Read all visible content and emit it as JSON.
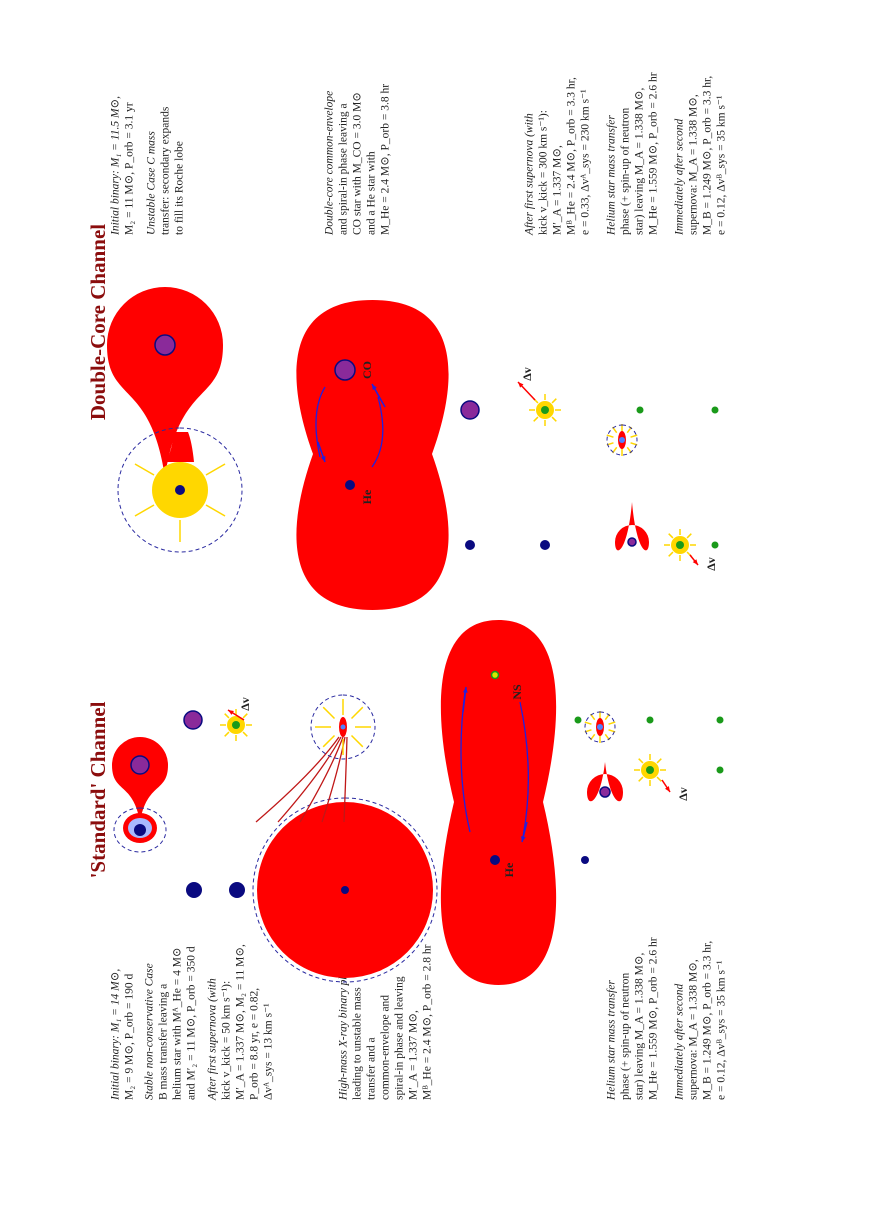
{
  "titles": {
    "standard": "'Standard' Channel",
    "double_core": "Double-Core Channel"
  },
  "standard": {
    "blocks": [
      {
        "lines": [
          "Initial binary: M₁ = 14 M⊙,",
          "M₂ = 9 M⊙, P_orb = 190 d"
        ]
      },
      {
        "lines": [
          "Stable non-conservative Case",
          "B mass transfer leaving a",
          "helium star with Mᴬ_He = 4 M⊙",
          "and M′₂ = 11 M⊙, P_orb = 350 d"
        ]
      },
      {
        "lines": [
          "After first supernova (with",
          "kick v_kick = 50 km s⁻¹):",
          "M′_A = 1.337 M⊙, M₂ = 11 M⊙,",
          "P_orb = 8.8 yr, e = 0.82,",
          "Δvᴬ_sys = 13 km s⁻¹"
        ]
      },
      {
        "lines": [
          "High-mass X-ray binary phase",
          "leading to unstable mass",
          "transfer and a",
          "common-envelope and",
          "spiral-in phase and leaving",
          "M′_A = 1.337 M⊙,",
          "Mᴮ_He = 2.4 M⊙, P_orb = 2.8 hr"
        ]
      },
      {
        "lines": [
          "Helium star mass transfer",
          "phase (+ spin-up of neutron",
          "star) leaving M_A = 1.338 M⊙,",
          "M_He = 1.559 M⊙, P_orb = 2.6 hr"
        ]
      },
      {
        "lines": [
          "Immediately after second",
          "supernova: M_A = 1.338 M⊙,",
          "M_B = 1.249 M⊙, P_orb = 3.3 hr,",
          "e = 0.12, Δvᴮ_sys = 35 km s⁻¹"
        ]
      }
    ],
    "labels": {
      "he": "He",
      "ns": "NS",
      "dv": "Δv"
    }
  },
  "double_core": {
    "blocks": [
      {
        "lines": [
          "Initial binary: M₁ = 11.5 M⊙,",
          "M₂ = 11 M⊙, P_orb = 3.1 yr"
        ]
      },
      {
        "lines": [
          "Unstable Case C mass",
          "transfer: secondary expands",
          "to fill its Roche lobe"
        ]
      },
      {
        "lines": [
          "Double-core common-envelope",
          "and spiral-in phase leaving a",
          "CO star with M_CO = 3.0 M⊙",
          "and a He star with",
          "M_He = 2.4 M⊙, P_orb = 3.8 hr"
        ]
      },
      {
        "lines": [
          "After first supernova (with",
          "kick v_kick = 300 km s⁻¹):",
          "M′_A = 1.337 M⊙,",
          "Mᴮ_He = 2.4 M⊙, P_orb = 3.3 hr,",
          "e = 0.33, Δvᴬ_sys = 230 km s⁻¹"
        ]
      },
      {
        "lines": [
          "Helium star mass transfer",
          "phase (+ spin-up of neutron",
          "star) leaving M_A = 1.338 M⊙,",
          "M_He = 1.559 M⊙, P_orb = 2.6 hr"
        ]
      },
      {
        "lines": [
          "Immediately after second",
          "supernova: M_A = 1.338 M⊙,",
          "M_B = 1.249 M⊙, P_orb = 3.3 hr,",
          "e = 0.12, Δvᴮ_sys = 35 km s⁻¹"
        ]
      }
    ],
    "labels": {
      "he": "He",
      "co": "CO",
      "dv": "Δv"
    }
  }
}
